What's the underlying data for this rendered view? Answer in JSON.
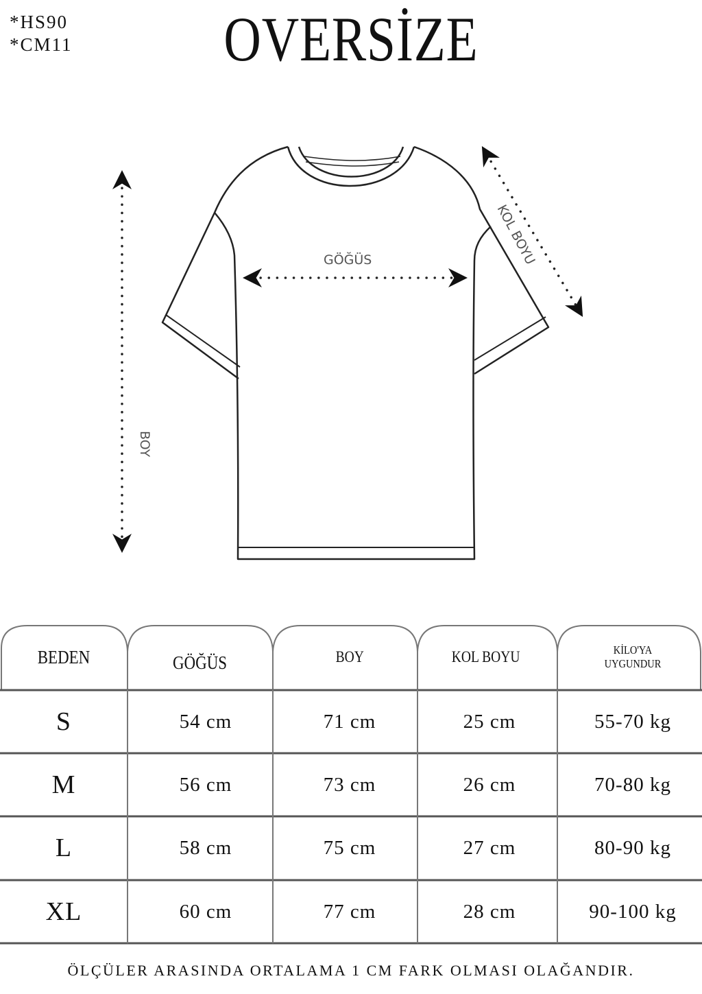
{
  "codes": [
    "*HS90",
    "*CM11"
  ],
  "title": "OVERSİZE",
  "diagram": {
    "chest_label": "GÖĞÜS",
    "sleeve_label": "KOL BOYU",
    "length_label": "BOY"
  },
  "table": {
    "headers": [
      "BEDEN",
      "GÖĞÜS",
      "BOY",
      "KOL BOYU",
      "KİLO'YA UYGUNDUR"
    ],
    "rows": [
      [
        "S",
        "54 cm",
        "71 cm",
        "25  cm",
        "55-70 kg"
      ],
      [
        "M",
        "56 cm",
        "73 cm",
        "26 cm",
        "70-80 kg"
      ],
      [
        "L",
        "58 cm",
        "75 cm",
        "27 cm",
        "80-90 kg"
      ],
      [
        "XL",
        "60 cm",
        "77 cm",
        "28 cm",
        "90-100 kg"
      ]
    ]
  },
  "footer": "ÖLÇÜLER ARASINDA ORTALAMA 1 CM FARK OLMASI OLAĞANDIR."
}
